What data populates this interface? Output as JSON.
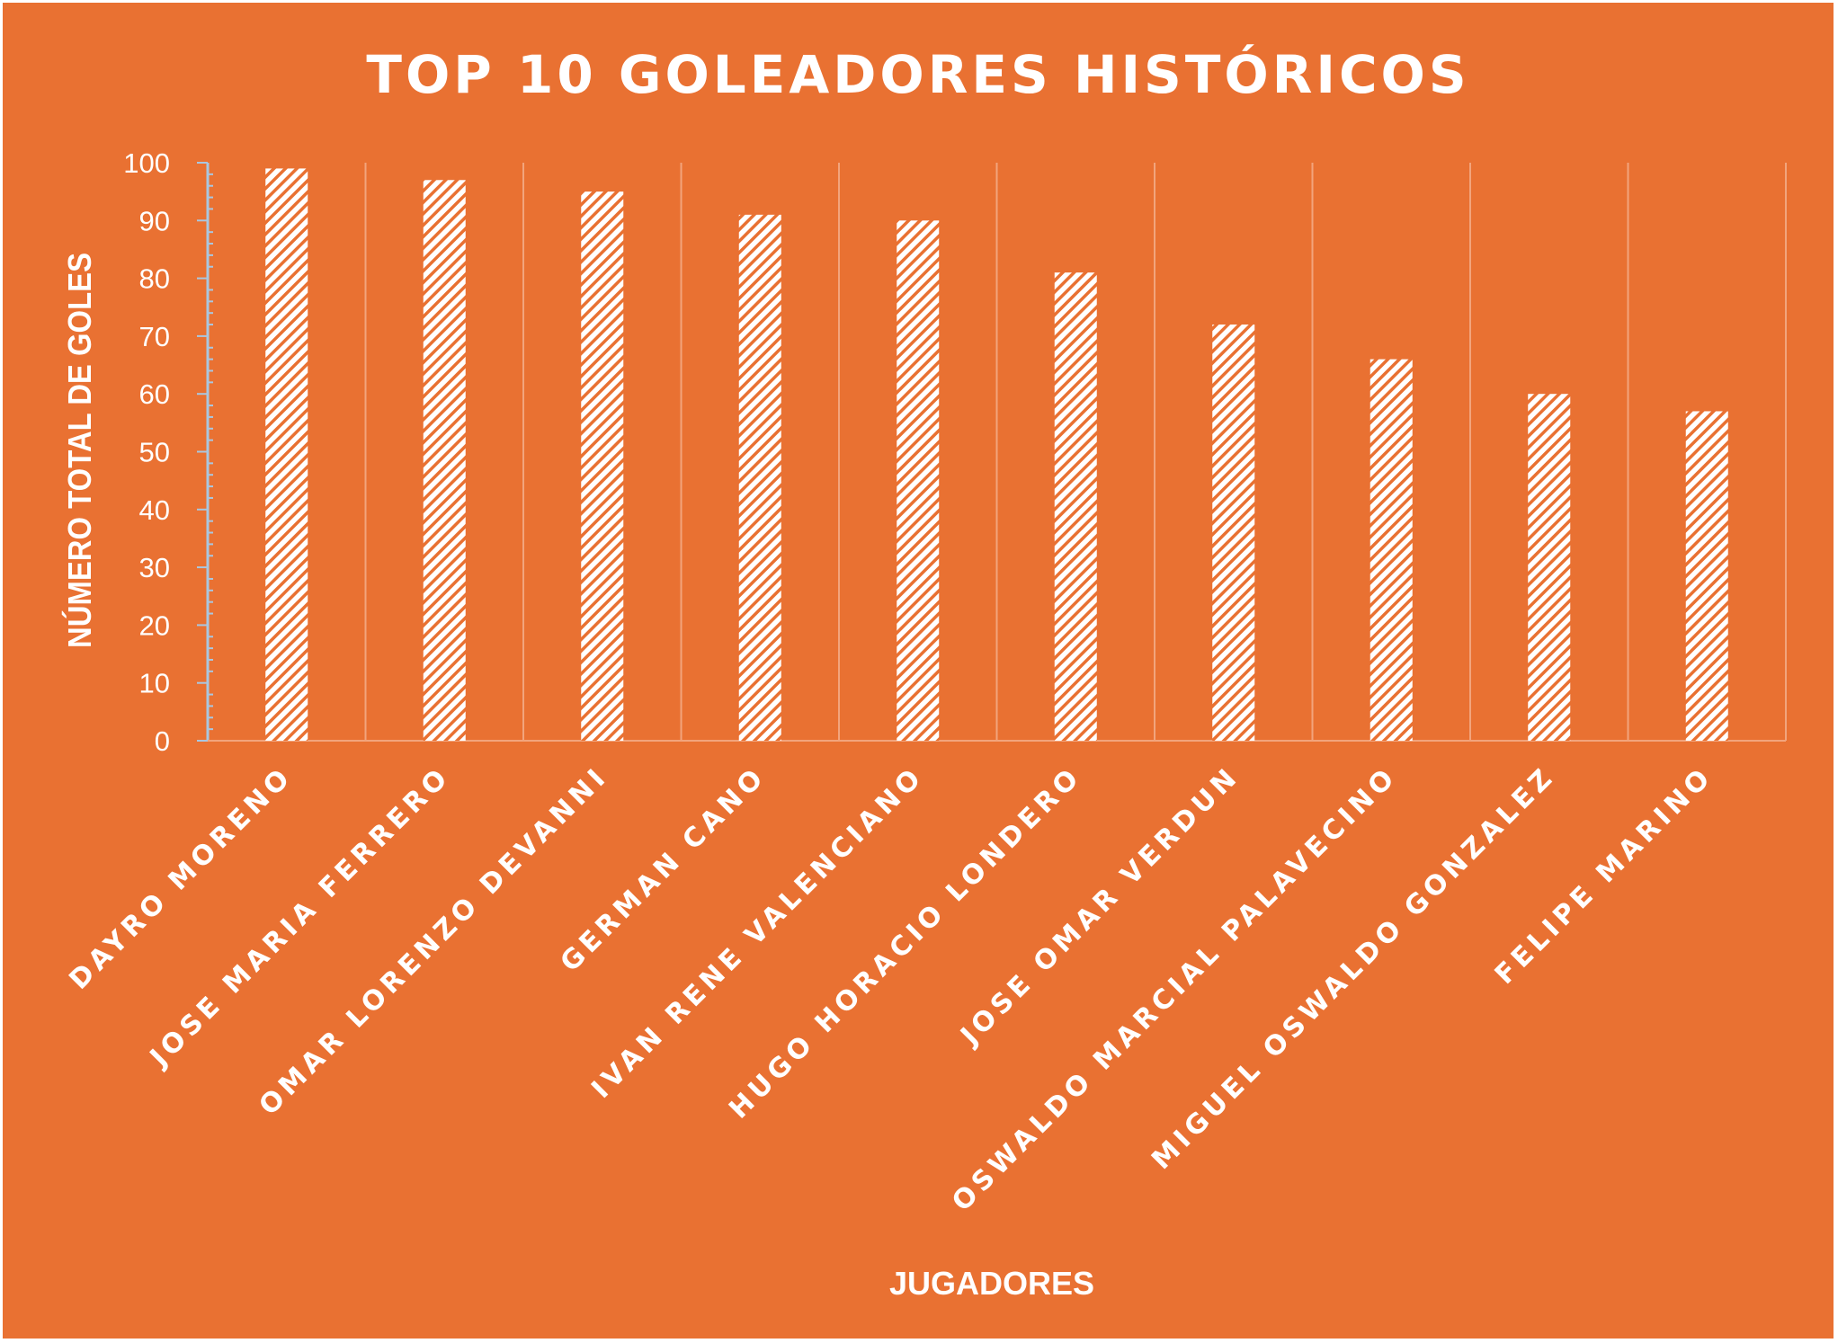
{
  "chart_data": {
    "type": "bar",
    "title": "TOP 10 GOLEADORES HISTÓRICOS",
    "xlabel": "JUGADORES",
    "ylabel": "NÚMERO TOTAL DE GOLES",
    "categories": [
      "DAYRO MORENO",
      "JOSE MARIA FERRERO",
      "OMAR LORENZO DEVANNI",
      "GERMAN CANO",
      "IVAN RENE VALENCIANO",
      "HUGO HORACIO LONDERO",
      "JOSE OMAR VERDUN",
      "OSWALDO MARCIAL PALAVECINO",
      "MIGUEL OSWALDO GONZALEZ",
      "FELIPE MARINO"
    ],
    "values": [
      99,
      97,
      95,
      91,
      90,
      81,
      72,
      66,
      60,
      57
    ],
    "ylim": [
      0,
      100
    ],
    "y_ticks": [
      0,
      10,
      20,
      30,
      40,
      50,
      60,
      70,
      80,
      90,
      100
    ],
    "grid": "vertical",
    "legend": "none"
  },
  "colors": {
    "background": "#E97132",
    "bar_fill": "#ffffff",
    "bar_stripe": "#E97132",
    "gridline": "#F2A47C",
    "axis": "#A9C7E0",
    "text": "#ffffff"
  }
}
